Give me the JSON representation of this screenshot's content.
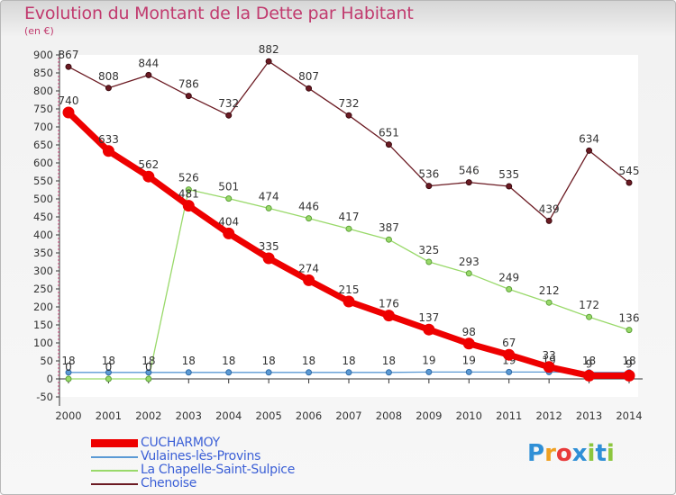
{
  "title": "Evolution du Montant de la Dette par Habitant",
  "subtitle": "(en €)",
  "logo": {
    "text": "Proxiti",
    "colors": [
      "#2f8fd6",
      "#f0a020",
      "#e83a3a",
      "#2f8fd6",
      "#8cc63e",
      "#2f8fd6",
      "#8cc63e"
    ]
  },
  "chart_data": {
    "type": "line",
    "title": "Evolution du Montant de la Dette par Habitant",
    "ylabel": "(en €)",
    "xlabel": "",
    "x": [
      "2000",
      "2001",
      "2002",
      "2003",
      "2004",
      "2005",
      "2006",
      "2007",
      "2008",
      "2009",
      "2010",
      "2011",
      "2012",
      "2013",
      "2014"
    ],
    "ylim": [
      -50,
      900
    ],
    "yticks": [
      -50,
      0,
      50,
      100,
      150,
      200,
      250,
      300,
      350,
      400,
      450,
      500,
      550,
      600,
      650,
      700,
      750,
      800,
      850,
      900
    ],
    "grid": false,
    "legend_position": "bottom-left",
    "series": [
      {
        "name": "Chenoise",
        "color": "#6b1a22",
        "values": [
          867,
          808,
          844,
          786,
          732,
          882,
          807,
          732,
          651,
          536,
          546,
          535,
          439,
          634,
          545
        ]
      },
      {
        "name": "La Chapelle-Saint-Sulpice",
        "color": "#99d96a",
        "values": [
          0,
          0,
          0,
          526,
          501,
          474,
          446,
          417,
          387,
          325,
          293,
          249,
          212,
          172,
          136
        ],
        "labels": [
          "",
          "",
          "",
          "526",
          "501",
          "474",
          "446",
          "417",
          "387",
          "325",
          "293",
          "249",
          "212",
          "172",
          "136"
        ]
      },
      {
        "name": "Vulaines-lès-Provins",
        "color": "#5b9ad5",
        "values": [
          18,
          18,
          18,
          18,
          18,
          18,
          18,
          18,
          18,
          19,
          19,
          19,
          19,
          18,
          18
        ]
      },
      {
        "name": "CUCHARMOY",
        "color": "#ee0000",
        "values": [
          740,
          633,
          562,
          481,
          404,
          335,
          274,
          215,
          176,
          137,
          98,
          67,
          33,
          9,
          9
        ],
        "labels": [
          "740",
          "633",
          "562",
          "481",
          "404",
          "335",
          "274",
          "215",
          "176",
          "137",
          "98",
          "67",
          "33",
          "9",
          "9"
        ]
      }
    ],
    "extra_point_labels": [
      {
        "x": "2000",
        "text": "0"
      },
      {
        "x": "2001",
        "text": "0"
      },
      {
        "x": "2002",
        "text": "0"
      }
    ]
  },
  "legend": [
    {
      "label": "CUCHARMOY",
      "color": "#ee0000"
    },
    {
      "label": "Vulaines-lès-Provins",
      "color": "#5b9ad5"
    },
    {
      "label": "La Chapelle-Saint-Sulpice",
      "color": "#99d96a"
    },
    {
      "label": "Chenoise",
      "color": "#6b1a22"
    }
  ]
}
